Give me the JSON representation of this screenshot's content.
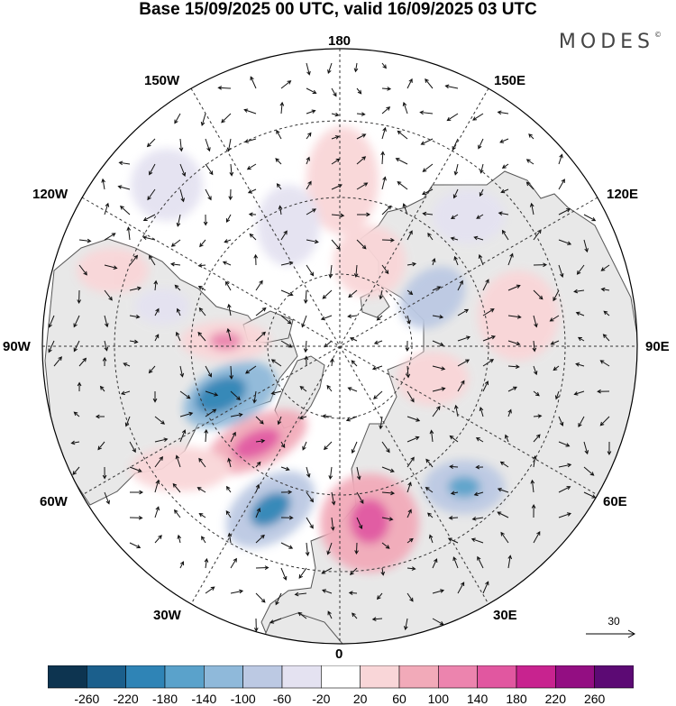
{
  "title": "Base 15/09/2025 00 UTC, valid 16/09/2025 03 UTC",
  "brand": {
    "name": "MODES",
    "mark": "©"
  },
  "longitude_labels": {
    "top": "180",
    "bottom": "0",
    "left": "90W",
    "right": "90E",
    "upper_left_1": "150W",
    "upper_left_2": "120W",
    "upper_right_1": "150E",
    "upper_right_2": "120E",
    "lower_left_1": "60W",
    "lower_left_2": "30W",
    "lower_right_1": "60E",
    "lower_right_2": "30E"
  },
  "reference_vector": {
    "label": "30"
  },
  "colorbar": {
    "ticks": [
      "-260",
      "-220",
      "-180",
      "-140",
      "-100",
      "-60",
      "-20",
      "20",
      "60",
      "100",
      "140",
      "180",
      "220",
      "260"
    ],
    "colors": [
      "#0d3450",
      "#1b5f8c",
      "#2f84b6",
      "#5aa2cb",
      "#8fb9da",
      "#bcc9e3",
      "#e4e2f1",
      "#ffffff",
      "#f9d6d8",
      "#f2aab9",
      "#ec84ae",
      "#e157a0",
      "#c8238f",
      "#930e82",
      "#5c0a74"
    ]
  },
  "colors": {
    "land": "#e8e8e8",
    "ocean": "#ffffff",
    "coast": "#555555",
    "grid": "#333333"
  }
}
